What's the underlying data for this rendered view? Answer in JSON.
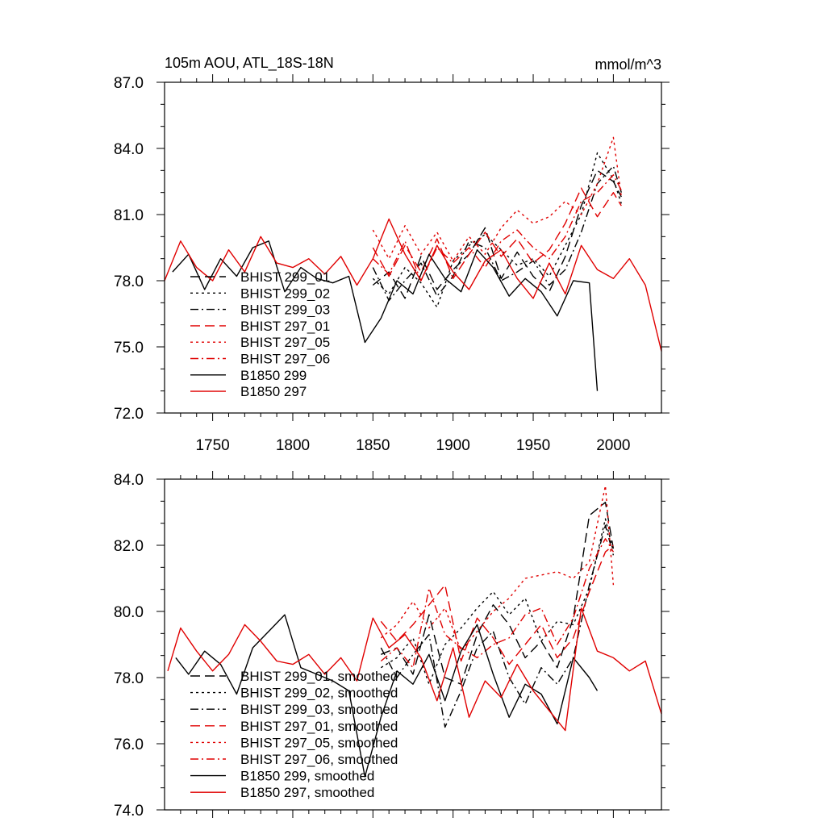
{
  "chart_data": [
    {
      "type": "line",
      "title": "105m AOU, ATL_18S-18N",
      "units": "mmol/m^3",
      "xlim": [
        1720,
        2030
      ],
      "ylim": [
        72.0,
        87.0
      ],
      "x_ticks": [
        1750,
        1800,
        1850,
        1900,
        1950,
        2000
      ],
      "x_tick_labels": [
        "1750",
        "1800",
        "1850",
        "1900",
        "1950",
        "2000"
      ],
      "y_ticks": [
        72.0,
        75.0,
        78.0,
        81.0,
        84.0,
        87.0
      ],
      "y_tick_labels": [
        "72.0",
        "75.0",
        "78.0",
        "81.0",
        "84.0",
        "87.0"
      ],
      "legend_position": "bottom-left",
      "series": [
        {
          "name": "BHIST 299_01",
          "color": "#000000",
          "dash": "longdash",
          "x": [
            1850,
            1860,
            1870,
            1880,
            1890,
            1900,
            1910,
            1920,
            1930,
            1940,
            1950,
            1960,
            1970,
            1980,
            1990,
            2000,
            2005
          ],
          "values": [
            77.8,
            78.4,
            77.2,
            79.1,
            77.6,
            78.5,
            79.2,
            80.4,
            78.1,
            79.3,
            78.2,
            77.5,
            79.1,
            81.4,
            83.0,
            82.5,
            81.8
          ]
        },
        {
          "name": "BHIST 299_02",
          "color": "#000000",
          "dash": "dot",
          "x": [
            1850,
            1860,
            1870,
            1880,
            1890,
            1900,
            1910,
            1920,
            1930,
            1940,
            1950,
            1960,
            1970,
            1980,
            1990,
            2000,
            2005
          ],
          "values": [
            78.1,
            77.4,
            78.6,
            77.9,
            76.8,
            78.9,
            79.6,
            80.1,
            79.4,
            78.7,
            79.0,
            78.2,
            79.6,
            81.0,
            83.8,
            82.6,
            81.5
          ]
        },
        {
          "name": "BHIST 299_03",
          "color": "#000000",
          "dash": "dashdot",
          "x": [
            1850,
            1860,
            1870,
            1880,
            1890,
            1900,
            1910,
            1920,
            1930,
            1940,
            1950,
            1960,
            1970,
            1980,
            1990,
            2000,
            2005
          ],
          "values": [
            78.6,
            77.1,
            78.0,
            78.8,
            77.3,
            78.2,
            79.8,
            79.5,
            78.0,
            78.4,
            78.9,
            77.8,
            78.5,
            80.2,
            82.4,
            83.2,
            82.0
          ]
        },
        {
          "name": "BHIST 297_01",
          "color": "#e00000",
          "dash": "longdash",
          "x": [
            1850,
            1860,
            1870,
            1880,
            1890,
            1900,
            1910,
            1920,
            1930,
            1940,
            1950,
            1960,
            1970,
            1980,
            1990,
            2000,
            2005
          ],
          "values": [
            79.5,
            78.2,
            79.6,
            78.4,
            79.9,
            78.1,
            79.2,
            80.2,
            79.1,
            79.9,
            78.8,
            79.4,
            80.6,
            82.2,
            80.9,
            82.0,
            81.4
          ]
        },
        {
          "name": "BHIST 297_05",
          "color": "#e00000",
          "dash": "dot",
          "x": [
            1850,
            1860,
            1870,
            1880,
            1890,
            1900,
            1910,
            1920,
            1930,
            1940,
            1950,
            1960,
            1970,
            1980,
            1990,
            2000,
            2005
          ],
          "values": [
            80.3,
            79.0,
            80.5,
            79.2,
            80.2,
            78.9,
            80.0,
            79.2,
            80.4,
            81.2,
            80.6,
            80.9,
            81.6,
            81.0,
            82.4,
            84.5,
            81.8
          ]
        },
        {
          "name": "BHIST 297_06",
          "color": "#e00000",
          "dash": "dashdot",
          "x": [
            1850,
            1860,
            1870,
            1880,
            1890,
            1900,
            1910,
            1920,
            1930,
            1940,
            1950,
            1960,
            1970,
            1980,
            1990,
            2000,
            2005
          ],
          "values": [
            79.0,
            78.3,
            79.8,
            78.0,
            79.5,
            78.8,
            79.5,
            78.6,
            79.8,
            80.3,
            79.5,
            79.0,
            80.0,
            81.6,
            82.0,
            82.8,
            82.1
          ]
        },
        {
          "name": "B1850 299",
          "color": "#000000",
          "dash": "solid",
          "x": [
            1725,
            1735,
            1745,
            1755,
            1765,
            1775,
            1785,
            1795,
            1805,
            1815,
            1825,
            1835,
            1845,
            1855,
            1865,
            1875,
            1885,
            1895,
            1905,
            1915,
            1925,
            1935,
            1945,
            1955,
            1965,
            1975,
            1985,
            1990
          ],
          "values": [
            78.4,
            79.2,
            77.6,
            79.0,
            78.2,
            79.5,
            79.8,
            77.5,
            78.6,
            78.1,
            77.9,
            78.2,
            75.2,
            76.3,
            78.0,
            77.4,
            79.2,
            78.1,
            77.5,
            79.4,
            78.6,
            77.3,
            78.1,
            77.5,
            76.4,
            78.0,
            77.9,
            73.0
          ]
        },
        {
          "name": "B1850 297",
          "color": "#e00000",
          "dash": "solid",
          "x": [
            1720,
            1730,
            1740,
            1750,
            1760,
            1770,
            1780,
            1790,
            1800,
            1810,
            1820,
            1830,
            1840,
            1850,
            1860,
            1870,
            1880,
            1890,
            1900,
            1910,
            1920,
            1930,
            1940,
            1950,
            1960,
            1970,
            1980,
            1990,
            2000,
            2010,
            2020,
            2030
          ],
          "values": [
            78.0,
            79.8,
            78.6,
            78.0,
            79.4,
            78.4,
            80.0,
            78.8,
            78.6,
            79.0,
            78.3,
            79.1,
            77.8,
            79.0,
            80.8,
            79.2,
            78.0,
            79.6,
            78.4,
            77.6,
            78.9,
            79.4,
            78.1,
            77.2,
            78.8,
            77.4,
            79.6,
            78.5,
            78.1,
            79.0,
            77.8,
            74.8
          ]
        }
      ]
    },
    {
      "type": "line",
      "title": "",
      "xlim": [
        1720,
        2030
      ],
      "ylim": [
        74.0,
        84.0
      ],
      "y_ticks": [
        74.0,
        76.0,
        78.0,
        80.0,
        82.0,
        84.0
      ],
      "y_tick_labels": [
        "74.0",
        "76.0",
        "78.0",
        "80.0",
        "82.0",
        "84.0"
      ],
      "legend_position": "bottom-left",
      "series": [
        {
          "name": "BHIST 299_01, smoothed",
          "color": "#000000",
          "dash": "longdash",
          "x": [
            1855,
            1865,
            1875,
            1885,
            1895,
            1905,
            1915,
            1925,
            1935,
            1945,
            1955,
            1965,
            1975,
            1985,
            1995,
            2000
          ],
          "values": [
            78.7,
            78.9,
            78.1,
            79.9,
            78.0,
            77.8,
            79.3,
            80.2,
            79.6,
            78.6,
            79.1,
            78.3,
            79.8,
            82.9,
            83.3,
            81.9
          ]
        },
        {
          "name": "BHIST 299_02, smoothed",
          "color": "#000000",
          "dash": "dot",
          "x": [
            1855,
            1865,
            1875,
            1885,
            1895,
            1905,
            1915,
            1925,
            1935,
            1945,
            1955,
            1965,
            1975,
            1985,
            1995,
            2000
          ],
          "values": [
            78.3,
            78.6,
            79.2,
            77.8,
            79.0,
            79.5,
            80.1,
            80.6,
            79.9,
            80.4,
            79.1,
            79.7,
            79.6,
            80.7,
            82.8,
            81.8
          ]
        },
        {
          "name": "BHIST 299_03, smoothed",
          "color": "#000000",
          "dash": "dashdot",
          "x": [
            1855,
            1865,
            1875,
            1885,
            1895,
            1905,
            1915,
            1925,
            1935,
            1945,
            1955,
            1965,
            1975,
            1985,
            1995,
            2000
          ],
          "values": [
            78.9,
            78.0,
            78.7,
            79.3,
            76.5,
            77.6,
            78.9,
            79.4,
            78.0,
            77.2,
            78.3,
            77.8,
            78.6,
            80.8,
            82.6,
            81.7
          ]
        },
        {
          "name": "BHIST 297_01, smoothed",
          "color": "#e00000",
          "dash": "longdash",
          "x": [
            1855,
            1865,
            1875,
            1885,
            1895,
            1905,
            1915,
            1925,
            1935,
            1945,
            1955,
            1965,
            1975,
            1985,
            1995,
            2000
          ],
          "values": [
            79.7,
            79.1,
            79.6,
            80.2,
            80.8,
            78.5,
            79.8,
            79.2,
            78.4,
            79.0,
            79.6,
            78.6,
            79.2,
            80.6,
            81.8,
            82.0
          ]
        },
        {
          "name": "BHIST 297_05, smoothed",
          "color": "#e00000",
          "dash": "dot",
          "x": [
            1855,
            1865,
            1875,
            1885,
            1895,
            1905,
            1915,
            1925,
            1935,
            1945,
            1955,
            1965,
            1975,
            1985,
            1995,
            2000
          ],
          "values": [
            79.2,
            79.6,
            80.3,
            79.5,
            80.1,
            78.8,
            79.4,
            80.0,
            80.4,
            81.0,
            81.1,
            81.2,
            81.0,
            81.5,
            83.8,
            80.8
          ]
        },
        {
          "name": "BHIST 297_06, smoothed",
          "color": "#e00000",
          "dash": "dashdot",
          "x": [
            1855,
            1865,
            1875,
            1885,
            1895,
            1905,
            1915,
            1925,
            1935,
            1945,
            1955,
            1965,
            1975,
            1985,
            1995,
            2000
          ],
          "values": [
            78.5,
            78.9,
            78.3,
            80.7,
            79.3,
            78.9,
            78.6,
            79.0,
            79.2,
            79.9,
            80.1,
            79.0,
            79.8,
            81.3,
            82.2,
            81.8
          ]
        },
        {
          "name": "B1850 299, smoothed",
          "color": "#000000",
          "dash": "solid",
          "x": [
            1727,
            1735,
            1745,
            1755,
            1765,
            1775,
            1785,
            1795,
            1805,
            1815,
            1825,
            1835,
            1845,
            1855,
            1865,
            1875,
            1885,
            1895,
            1905,
            1915,
            1925,
            1935,
            1945,
            1955,
            1965,
            1975,
            1985,
            1990
          ],
          "values": [
            78.6,
            78.1,
            78.8,
            78.4,
            77.5,
            78.9,
            79.4,
            79.9,
            78.3,
            78.1,
            77.9,
            77.6,
            75.0,
            76.8,
            78.2,
            77.8,
            78.7,
            77.3,
            78.8,
            79.6,
            78.1,
            76.8,
            77.8,
            77.5,
            76.6,
            78.6,
            78.0,
            77.6
          ]
        },
        {
          "name": "B1850 297, smoothed",
          "color": "#e00000",
          "dash": "solid",
          "x": [
            1722,
            1730,
            1740,
            1750,
            1760,
            1770,
            1780,
            1790,
            1800,
            1810,
            1820,
            1830,
            1840,
            1850,
            1860,
            1870,
            1880,
            1890,
            1900,
            1910,
            1920,
            1930,
            1940,
            1950,
            1960,
            1970,
            1980,
            1990,
            2000,
            2010,
            2020,
            2030
          ],
          "values": [
            78.2,
            79.5,
            78.8,
            78.2,
            78.7,
            79.6,
            79.1,
            78.5,
            78.4,
            78.7,
            78.1,
            78.6,
            77.9,
            79.8,
            78.9,
            79.3,
            78.6,
            77.3,
            78.9,
            76.8,
            77.9,
            77.4,
            78.4,
            77.6,
            77.0,
            76.4,
            80.1,
            78.8,
            78.6,
            78.2,
            78.5,
            76.9
          ]
        }
      ]
    }
  ]
}
